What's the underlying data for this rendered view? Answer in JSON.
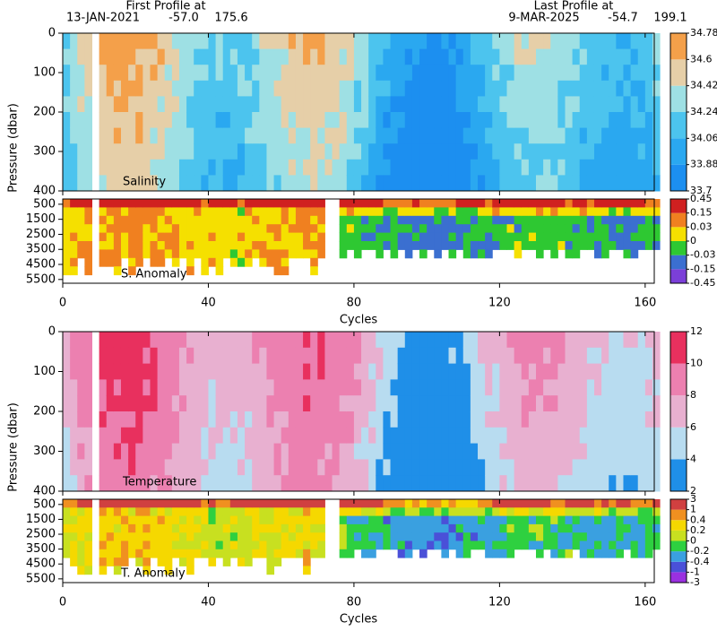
{
  "header": {
    "first": {
      "label": "First Profile at",
      "date": "13-JAN-2021",
      "lat": "-57.0",
      "lon": "175.6"
    },
    "last": {
      "label": "Last Profile at",
      "date": "9-MAR-2025",
      "lat": "-54.7",
      "lon": "199.1"
    }
  },
  "chart_data": [
    {
      "type": "heatmap",
      "panel_label": "Salinity",
      "y_label": "Pressure (dbar)",
      "xlim": [
        0,
        162.5
      ],
      "ylim": [
        0,
        400
      ],
      "yticks": [
        0,
        100,
        200,
        300,
        400
      ],
      "colorbar": {
        "ticks": [
          33.7,
          33.88,
          34.06,
          34.24,
          34.42,
          34.6,
          34.78
        ],
        "colors": [
          "#1c8ff0",
          "#2aa8f0",
          "#4cc4ee",
          "#9ee0e4",
          "#e6cfa8",
          "#f4a04a"
        ]
      }
    },
    {
      "type": "heatmap",
      "panel_label": "S. Anomaly",
      "x_label": "Cycles",
      "xlim": [
        0,
        162.5
      ],
      "xticks": [
        0,
        40,
        80,
        120,
        160
      ],
      "ylim": [
        150,
        5750
      ],
      "yticks": [
        500,
        1500,
        2500,
        3500,
        4500,
        5500
      ],
      "colorbar": {
        "ticks": [
          -0.45,
          -0.15,
          -0.03,
          0,
          0.03,
          0.15,
          0.45
        ],
        "colors": [
          "#7b3fd8",
          "#3b6fd0",
          "#2ec832",
          "#f5e000",
          "#f08020",
          "#d02020"
        ]
      }
    },
    {
      "type": "heatmap",
      "panel_label": "Temperature",
      "y_label": "Pressure (dbar)",
      "xlim": [
        0,
        162.5
      ],
      "ylim": [
        0,
        400
      ],
      "yticks": [
        0,
        100,
        200,
        300,
        400
      ],
      "colorbar": {
        "ticks": [
          2,
          4,
          6,
          8,
          10,
          12
        ],
        "colors": [
          "#1f8fe8",
          "#b8dcf0",
          "#e8b0d0",
          "#ec80b0",
          "#e8305e"
        ]
      }
    },
    {
      "type": "heatmap",
      "panel_label": "T. Anomaly",
      "x_label": "Cycles",
      "xlim": [
        0,
        162.5
      ],
      "xticks": [
        0,
        40,
        80,
        120,
        160
      ],
      "ylim": [
        150,
        5750
      ],
      "yticks": [
        500,
        1500,
        2500,
        3500,
        4500,
        5500
      ],
      "colorbar": {
        "ticks": [
          -3,
          -1,
          -0.4,
          -0.2,
          0,
          0.2,
          0.4,
          1,
          3
        ],
        "colors": [
          "#9a30e0",
          "#4a50d8",
          "#3aa0e0",
          "#2ed040",
          "#c8e020",
          "#f5d800",
          "#f09020",
          "#d04040"
        ]
      }
    }
  ]
}
